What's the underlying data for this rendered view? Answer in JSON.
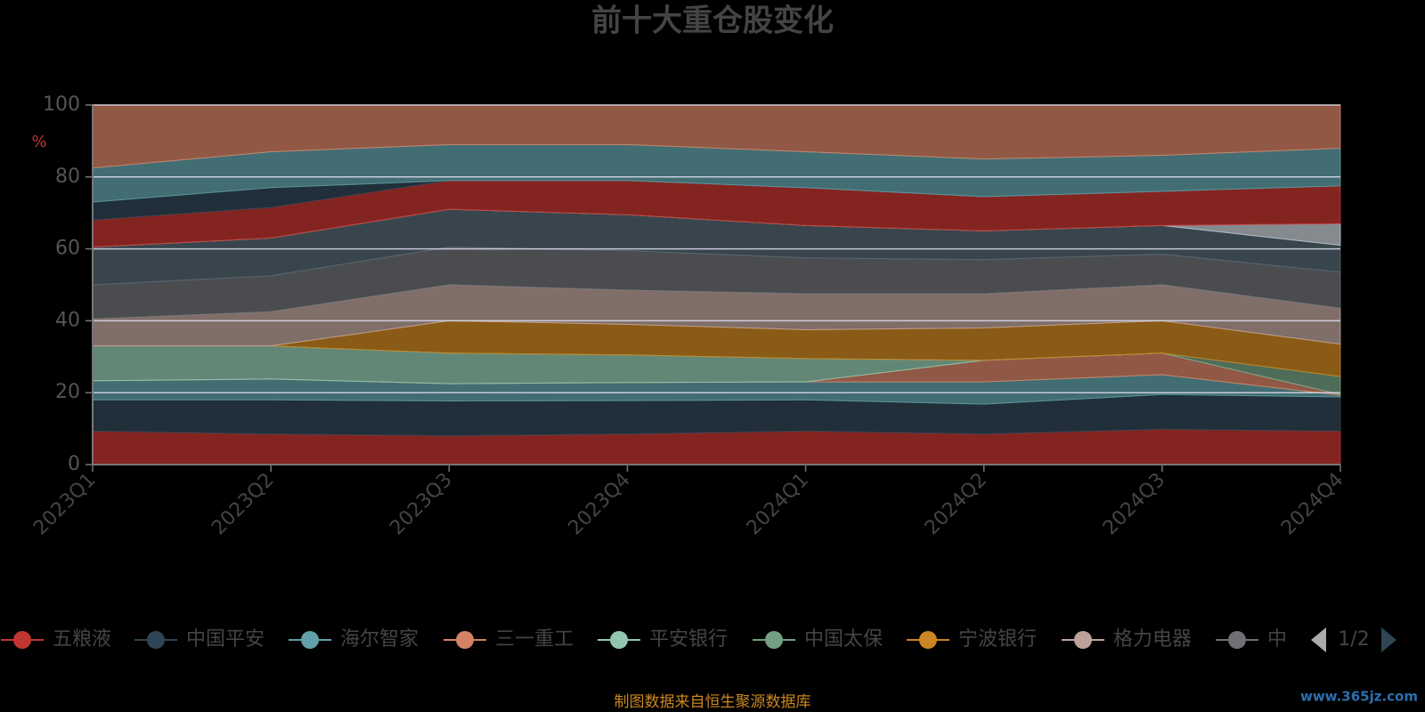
{
  "chart_data": {
    "type": "stacked_area",
    "title": "前十大重仓股变化",
    "y_label": "%",
    "categories": [
      "2023Q1",
      "2023Q2",
      "2023Q3",
      "2023Q4",
      "2024Q1",
      "2024Q2",
      "2024Q3",
      "2024Q4"
    ],
    "ylim": [
      0,
      100
    ],
    "yticks": [
      0,
      20,
      40,
      60,
      80,
      100
    ],
    "grid": true,
    "series": [
      {
        "name": "五粮液",
        "color": "#c23531",
        "values": [
          9.3,
          8.5,
          8.0,
          8.5,
          9.3,
          8.5,
          9.8,
          9.3
        ]
      },
      {
        "name": "中国平安",
        "color": "#2f4554",
        "values": [
          8.7,
          9.5,
          9.7,
          9.3,
          8.7,
          8.3,
          9.7,
          9.5
        ]
      },
      {
        "name": "海尔智家",
        "color": "#61a0a8",
        "values": [
          5.3,
          5.8,
          4.8,
          5.0,
          5.0,
          6.2,
          5.5,
          0.5
        ]
      },
      {
        "name": "三一重工",
        "color": "#d48265",
        "values": [
          0,
          0,
          0,
          0,
          0,
          6,
          6,
          0.2
        ]
      },
      {
        "name": "平安银行",
        "color": "#91c7ae",
        "values": [
          9.7,
          9.2,
          8.5,
          7.7,
          6.5,
          0,
          0,
          0
        ]
      },
      {
        "name": "中国太保",
        "color": "#749f83",
        "values": [
          0,
          0,
          0,
          0,
          0,
          0,
          0,
          5
        ]
      },
      {
        "name": "宁波银行",
        "color": "#ca8622",
        "values": [
          0,
          0,
          9,
          8.5,
          8,
          9,
          9,
          9
        ]
      },
      {
        "name": "格力电器",
        "color": "#bda29a",
        "values": [
          7.5,
          9.5,
          10,
          9.5,
          10,
          9.5,
          10,
          10
        ]
      },
      {
        "name": "中",
        "color": "#6e7074",
        "values": [
          9.5,
          10,
          10.5,
          11,
          10,
          9.5,
          8.5,
          10
        ]
      },
      {
        "color": "#546570",
        "values": [
          10.5,
          10.5,
          10.5,
          10,
          9,
          8,
          8,
          7.5
        ]
      },
      {
        "color": "#c4ccd3",
        "values": [
          0,
          0,
          0,
          0,
          0,
          0,
          0,
          6
        ]
      },
      {
        "color": "#c23531",
        "values": [
          7.5,
          8.5,
          8,
          9.5,
          10.5,
          9.5,
          9.5,
          10.5
        ]
      },
      {
        "color": "#2f4554",
        "values": [
          5,
          5.5,
          0,
          0,
          0,
          0,
          0,
          0
        ]
      },
      {
        "color": "#61a0a8",
        "values": [
          9.5,
          10,
          10,
          10,
          10,
          10.5,
          10,
          10.5
        ]
      },
      {
        "color": "#d48265",
        "values": [
          17.5,
          13,
          11,
          11,
          13,
          15,
          14,
          12
        ]
      }
    ],
    "legend_page": "1/2",
    "source": "制图数据来自恒生聚源数据库",
    "watermark": "www.365jz.com"
  }
}
